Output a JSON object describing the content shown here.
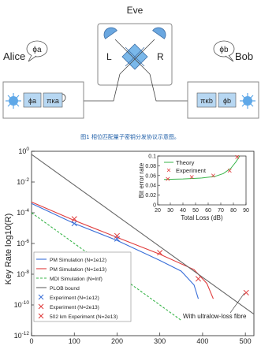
{
  "diagram": {
    "eve_label": "Eve",
    "alice_label": "Alice",
    "bob_label": "Bob",
    "alice_phase_bubble": "ϕa",
    "bob_phase_bubble": "ϕb",
    "detector_left": "L",
    "detector_right": "R",
    "alice_box": [
      "ϕa",
      "πκa"
    ],
    "bob_box": [
      "πκb",
      "ϕb"
    ],
    "caption": "图1 相位匹配量子密钥分发协议示意图。"
  },
  "chart_data": {
    "type": "line",
    "ylabel": "Key Rate log10(R)",
    "xlim": [
      0,
      520
    ],
    "ylim_exp": [
      -12,
      0
    ],
    "y_ticks": [
      "10^0",
      "10^-2",
      "10^-4",
      "10^-6",
      "10^-8",
      "10^-10",
      "10^-12"
    ],
    "x_ticks": [
      "0",
      "100",
      "200",
      "300",
      "400",
      "500"
    ],
    "annotation": "With ultralow-loss fibre",
    "series": [
      {
        "name": "PM Simulation (N=1e12)",
        "color": "#3a6fd8",
        "style": "solid",
        "x": [
          0,
          100,
          200,
          300,
          350,
          380,
          390
        ],
        "log10y": [
          -3.4,
          -4.7,
          -5.8,
          -7.1,
          -7.8,
          -8.7,
          -9.6
        ]
      },
      {
        "name": "PM Simulation (N=1e13)",
        "color": "#e03b3b",
        "style": "solid",
        "x": [
          0,
          100,
          200,
          300,
          380,
          410,
          425
        ],
        "log10y": [
          -3.3,
          -4.5,
          -5.6,
          -6.7,
          -7.7,
          -8.6,
          -9.6
        ]
      },
      {
        "name": "MDI Simulation (N=Inf)",
        "color": "#39b54a",
        "style": "dashed",
        "x": [
          0,
          100,
          200,
          300,
          350
        ],
        "log10y": [
          -4.0,
          -6.0,
          -8.0,
          -10.0,
          -11.0
        ]
      },
      {
        "name": "PLOB bound",
        "color": "#666666",
        "style": "solid",
        "x": [
          0,
          100,
          200,
          300,
          400,
          500,
          520
        ],
        "log10y": [
          -0.2,
          -2.2,
          -4.2,
          -6.2,
          -8.2,
          -10.2,
          -10.6
        ]
      }
    ],
    "points": [
      {
        "name": "Experiment (N=1e12)",
        "color": "#3a6fd8",
        "x": [
          100,
          200
        ],
        "log10y": [
          -4.7,
          -5.7
        ]
      },
      {
        "name": "Experiment (N=2e13)",
        "color": "#e03b3b",
        "x": [
          100,
          200,
          300,
          390
        ],
        "log10y": [
          -4.4,
          -5.5,
          -6.6,
          -8.3
        ]
      },
      {
        "name": "502 km Experiment (N=2e13)",
        "color": "#e03b3b",
        "x": [
          502
        ],
        "log10y": [
          -9.2
        ]
      }
    ],
    "inset": {
      "ylabel": "Bit error rate",
      "xlabel": "Total Loss (dB)",
      "xlim": [
        20,
        90
      ],
      "ylim": [
        0,
        0.1
      ],
      "x_ticks": [
        "20",
        "30",
        "40",
        "50",
        "60",
        "70",
        "80",
        "90"
      ],
      "y_ticks": [
        "0",
        "0.02",
        "0.04",
        "0.06",
        "0.08",
        "0.1"
      ],
      "legend": [
        "Theory",
        "Experiment"
      ],
      "theory": {
        "x": [
          25,
          40,
          55,
          65,
          72,
          78,
          82,
          85
        ],
        "y": [
          0.052,
          0.053,
          0.055,
          0.058,
          0.064,
          0.075,
          0.088,
          0.1
        ]
      },
      "experiment": {
        "x": [
          28,
          47,
          64,
          77,
          83
        ],
        "y": [
          0.053,
          0.057,
          0.06,
          0.07,
          0.098
        ]
      }
    }
  }
}
